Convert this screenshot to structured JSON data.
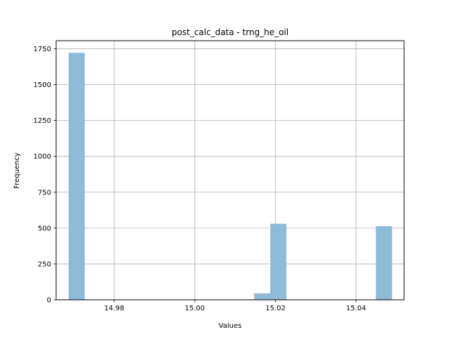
{
  "chart_data": {
    "type": "bar",
    "title": "post_calc_data - trng_he_oil",
    "xlabel": "Values",
    "ylabel": "Frequency",
    "xlim": [
      14.9656,
      15.0519
    ],
    "ylim": [
      0,
      1806
    ],
    "grid": true,
    "bar_color": "#8fbbd9",
    "bins": [
      {
        "x0": 14.9687,
        "x1": 14.9727,
        "value": 1722
      },
      {
        "x0": 15.0147,
        "x1": 15.0187,
        "value": 45
      },
      {
        "x0": 15.0187,
        "x1": 15.0227,
        "value": 530
      },
      {
        "x0": 15.0449,
        "x1": 15.0489,
        "value": 513
      }
    ],
    "x_ticks": [
      {
        "value": 14.98,
        "label": "14.98"
      },
      {
        "value": 15.0,
        "label": "15.00"
      },
      {
        "value": 15.02,
        "label": "15.02"
      },
      {
        "value": 15.04,
        "label": "15.04"
      }
    ],
    "y_ticks": [
      {
        "value": 0,
        "label": "0"
      },
      {
        "value": 250,
        "label": "250"
      },
      {
        "value": 500,
        "label": "500"
      },
      {
        "value": 750,
        "label": "750"
      },
      {
        "value": 1000,
        "label": "1000"
      },
      {
        "value": 1250,
        "label": "1250"
      },
      {
        "value": 1500,
        "label": "1500"
      },
      {
        "value": 1750,
        "label": "1750"
      }
    ]
  }
}
